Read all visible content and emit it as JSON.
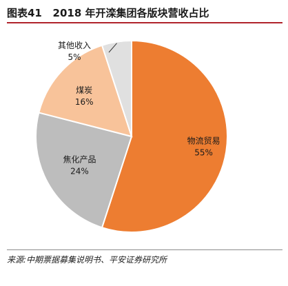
{
  "figure": {
    "number": "图表41",
    "title": "2018 年开滦集团各版块营收占比"
  },
  "source": "来源:中期票据募集说明书、平安证券研究所",
  "chart_data": {
    "type": "pie",
    "slices": [
      {
        "name": "物流贸易",
        "value": 55,
        "label": "55%",
        "color": "#ed7d31"
      },
      {
        "name": "焦化产品",
        "value": 24,
        "label": "24%",
        "color": "#bdbdbd"
      },
      {
        "name": "煤炭",
        "value": 16,
        "label": "16%",
        "color": "#f8c39a"
      },
      {
        "name": "其他收入",
        "value": 5,
        "label": "5%",
        "color": "#e0e0e0"
      }
    ],
    "start_angle": "12 o'clock",
    "direction": "clockwise",
    "legend": "none"
  }
}
